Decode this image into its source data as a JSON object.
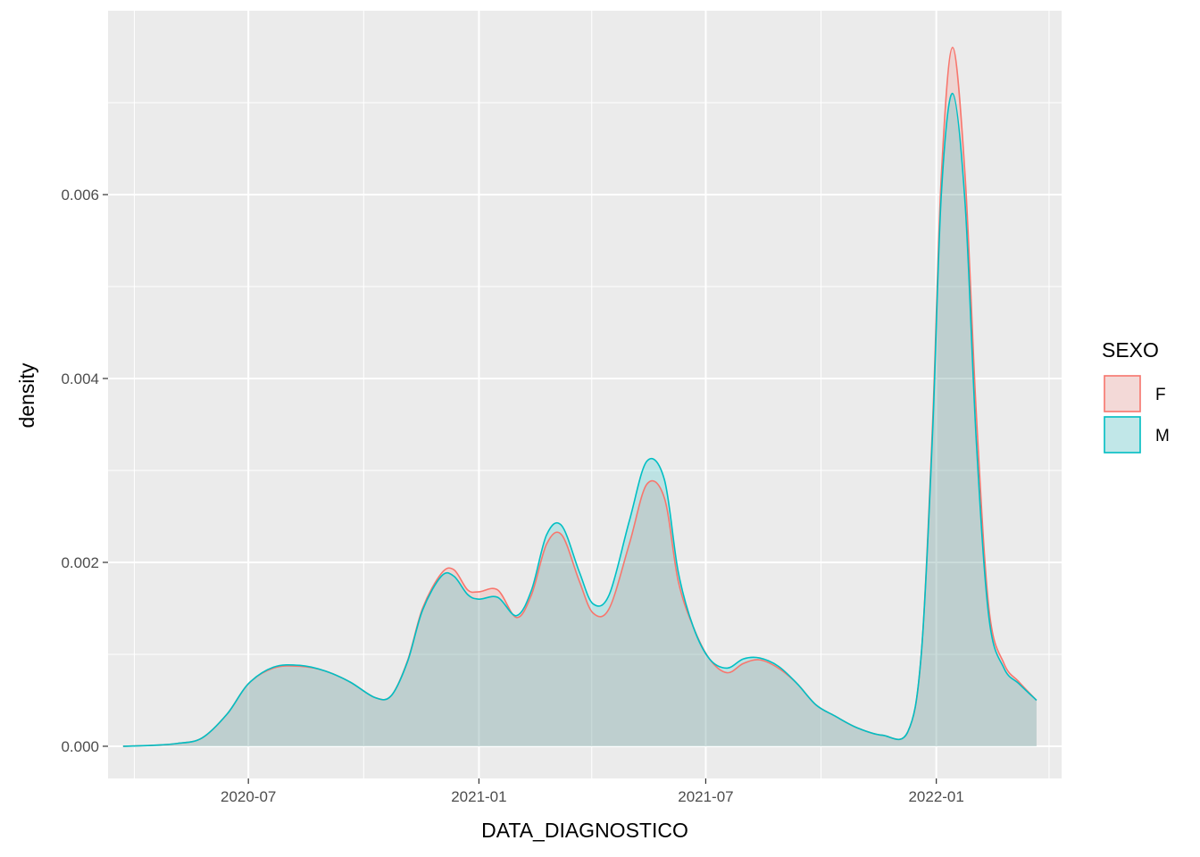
{
  "chart_data": {
    "type": "area",
    "xlabel": "DATA_DIAGNOSTICO",
    "ylabel": "density",
    "xlim": [
      "2020-03-11",
      "2022-04-11"
    ],
    "ylim": [
      -0.00035,
      0.008
    ],
    "x_ticks": [
      "2020-07",
      "2021-01",
      "2021-07",
      "2022-01"
    ],
    "x_minor_ticks": [
      "2020-04",
      "2020-10",
      "2021-04",
      "2021-10",
      "2022-04"
    ],
    "y_ticks": [
      0.0,
      0.002,
      0.004,
      0.006
    ],
    "y_tick_labels": [
      "0.000",
      "0.002",
      "0.004",
      "0.006"
    ],
    "y_minor_ticks": [
      0.001,
      0.003,
      0.005,
      0.007
    ],
    "grid": true,
    "legend": {
      "title": "SEXO",
      "position": "right",
      "entries": [
        {
          "label": "F",
          "color": "#F8766D"
        },
        {
          "label": "M",
          "color": "#00BFC4"
        }
      ]
    },
    "series": [
      {
        "name": "F",
        "color": "#F8766D",
        "x": [
          "2020-03-23",
          "2020-04-15",
          "2020-05-05",
          "2020-05-25",
          "2020-06-14",
          "2020-07-01",
          "2020-07-21",
          "2020-08-11",
          "2020-08-31",
          "2020-09-20",
          "2020-10-10",
          "2020-10-23",
          "2020-11-05",
          "2020-11-17",
          "2020-12-02",
          "2020-12-12",
          "2020-12-23",
          "2021-01-01",
          "2021-01-16",
          "2021-01-31",
          "2021-02-12",
          "2021-02-24",
          "2021-03-08",
          "2021-03-22",
          "2021-04-02",
          "2021-04-15",
          "2021-05-01",
          "2021-05-15",
          "2021-05-29",
          "2021-06-09",
          "2021-06-21",
          "2021-07-04",
          "2021-07-18",
          "2021-07-31",
          "2021-08-13",
          "2021-08-28",
          "2021-09-12",
          "2021-09-27",
          "2021-10-12",
          "2021-10-30",
          "2021-11-19",
          "2021-12-09",
          "2021-12-20",
          "2021-12-29",
          "2022-01-05",
          "2022-01-14",
          "2022-01-24",
          "2022-02-02",
          "2022-02-12",
          "2022-02-24",
          "2022-03-08",
          "2022-03-22"
        ],
        "values": [
          0.0,
          1e-05,
          3e-05,
          9e-05,
          0.00035,
          0.00068,
          0.00085,
          0.00087,
          0.00082,
          0.0007,
          0.00053,
          0.00055,
          0.00093,
          0.0015,
          0.00188,
          0.00192,
          0.0017,
          0.00168,
          0.0017,
          0.0014,
          0.00165,
          0.0022,
          0.0023,
          0.0018,
          0.00145,
          0.0015,
          0.0022,
          0.00285,
          0.0027,
          0.0018,
          0.0013,
          0.00095,
          0.0008,
          0.0009,
          0.00094,
          0.00085,
          0.00068,
          0.00045,
          0.00033,
          0.0002,
          0.00012,
          0.00015,
          0.001,
          0.0035,
          0.0062,
          0.0076,
          0.0062,
          0.0036,
          0.0015,
          0.0009,
          0.0007,
          0.0005
        ]
      },
      {
        "name": "M",
        "color": "#00BFC4",
        "x": [
          "2020-03-23",
          "2020-04-15",
          "2020-05-05",
          "2020-05-25",
          "2020-06-14",
          "2020-07-01",
          "2020-07-21",
          "2020-08-11",
          "2020-08-31",
          "2020-09-20",
          "2020-10-10",
          "2020-10-23",
          "2020-11-05",
          "2020-11-17",
          "2020-12-02",
          "2020-12-12",
          "2020-12-23",
          "2021-01-01",
          "2021-01-16",
          "2021-01-31",
          "2021-02-12",
          "2021-02-24",
          "2021-03-08",
          "2021-03-22",
          "2021-04-02",
          "2021-04-15",
          "2021-05-01",
          "2021-05-15",
          "2021-05-29",
          "2021-06-09",
          "2021-06-21",
          "2021-07-04",
          "2021-07-18",
          "2021-07-31",
          "2021-08-13",
          "2021-08-28",
          "2021-09-12",
          "2021-09-27",
          "2021-10-12",
          "2021-10-30",
          "2021-11-19",
          "2021-12-09",
          "2021-12-20",
          "2021-12-29",
          "2022-01-05",
          "2022-01-14",
          "2022-01-24",
          "2022-02-02",
          "2022-02-12",
          "2022-02-24",
          "2022-03-08",
          "2022-03-22"
        ],
        "values": [
          0.0,
          1e-05,
          3e-05,
          9e-05,
          0.00035,
          0.00068,
          0.00086,
          0.00088,
          0.00082,
          0.0007,
          0.00053,
          0.00055,
          0.00092,
          0.00148,
          0.00185,
          0.00185,
          0.00165,
          0.0016,
          0.00162,
          0.00142,
          0.0017,
          0.0023,
          0.0024,
          0.0019,
          0.00155,
          0.00165,
          0.00245,
          0.0031,
          0.0029,
          0.0019,
          0.0013,
          0.00095,
          0.00085,
          0.00095,
          0.00096,
          0.00087,
          0.00068,
          0.00045,
          0.00033,
          0.0002,
          0.00012,
          0.00015,
          0.001,
          0.0034,
          0.006,
          0.0071,
          0.0059,
          0.0033,
          0.0014,
          0.00085,
          0.00068,
          0.0005
        ]
      }
    ]
  }
}
